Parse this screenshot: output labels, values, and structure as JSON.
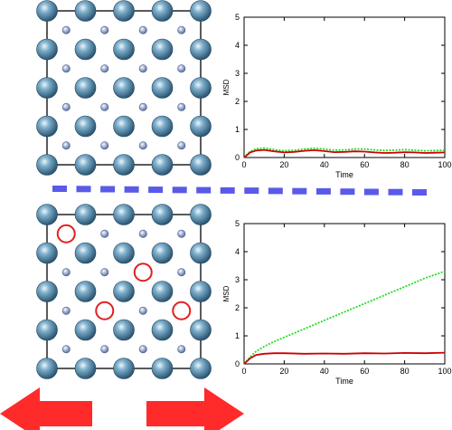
{
  "colors": {
    "cell_border": "#000000",
    "large_atom": "#3a6d8c",
    "small_atom": "#8fa6c8",
    "vacancy_ring": "#e02020",
    "divider": "#5a5ae8",
    "arrow": "#ff2a2a",
    "series_red": "#cc0000",
    "series_green": "#22dd22"
  },
  "panels": [
    {
      "lattice": {
        "large_rows": 5,
        "large_cols": 5,
        "small_rows": 4,
        "small_cols": 4,
        "vacancies": []
      },
      "chart_data": {
        "type": "line",
        "xlabel": "Time",
        "ylabel": "MSD",
        "xlim": [
          0,
          100
        ],
        "ylim": [
          0,
          5
        ],
        "xticks": [
          "0",
          "20",
          "40",
          "60",
          "80",
          "100"
        ],
        "yticks": [
          "0",
          "1",
          "2",
          "3",
          "4",
          "5"
        ],
        "x": [
          0,
          3,
          6,
          10,
          15,
          20,
          25,
          30,
          35,
          40,
          45,
          50,
          55,
          60,
          65,
          70,
          75,
          80,
          85,
          90,
          95,
          100
        ],
        "series": [
          {
            "color_key": "series_green",
            "dashed": true,
            "values": [
              0,
              0.22,
              0.31,
              0.34,
              0.28,
              0.24,
              0.26,
              0.3,
              0.33,
              0.3,
              0.26,
              0.27,
              0.3,
              0.3,
              0.27,
              0.25,
              0.26,
              0.28,
              0.26,
              0.24,
              0.25,
              0.26
            ]
          },
          {
            "color_key": "series_red",
            "dashed": false,
            "values": [
              0,
              0.18,
              0.25,
              0.27,
              0.22,
              0.18,
              0.2,
              0.24,
              0.26,
              0.23,
              0.19,
              0.2,
              0.22,
              0.21,
              0.18,
              0.16,
              0.17,
              0.19,
              0.18,
              0.16,
              0.17,
              0.18
            ]
          }
        ]
      }
    },
    {
      "lattice": {
        "large_rows": 5,
        "large_cols": 5,
        "small_rows": 4,
        "small_cols": 4,
        "vacancies": [
          {
            "row": 0,
            "col": 0
          },
          {
            "row": 1,
            "col": 2
          },
          {
            "row": 2,
            "col": 1
          },
          {
            "row": 2,
            "col": 3
          }
        ]
      },
      "chart_data": {
        "type": "line",
        "xlabel": "Time",
        "ylabel": "MSD",
        "xlim": [
          0,
          100
        ],
        "ylim": [
          0,
          5
        ],
        "xticks": [
          "0",
          "20",
          "40",
          "60",
          "80",
          "100"
        ],
        "yticks": [
          "0",
          "1",
          "2",
          "3",
          "4",
          "5"
        ],
        "x": [
          0,
          3,
          6,
          10,
          15,
          20,
          30,
          40,
          50,
          60,
          70,
          80,
          90,
          100
        ],
        "series": [
          {
            "color_key": "series_green",
            "dashed": true,
            "values": [
              0,
              0.25,
              0.45,
              0.62,
              0.8,
              0.95,
              1.25,
              1.55,
              1.85,
              2.15,
              2.45,
              2.75,
              3.05,
              3.3
            ]
          },
          {
            "color_key": "series_red",
            "dashed": false,
            "values": [
              0,
              0.2,
              0.32,
              0.36,
              0.38,
              0.38,
              0.36,
              0.37,
              0.36,
              0.38,
              0.37,
              0.39,
              0.38,
              0.4
            ]
          }
        ]
      }
    }
  ],
  "arrows": [
    {
      "direction": "left"
    },
    {
      "direction": "right"
    }
  ]
}
